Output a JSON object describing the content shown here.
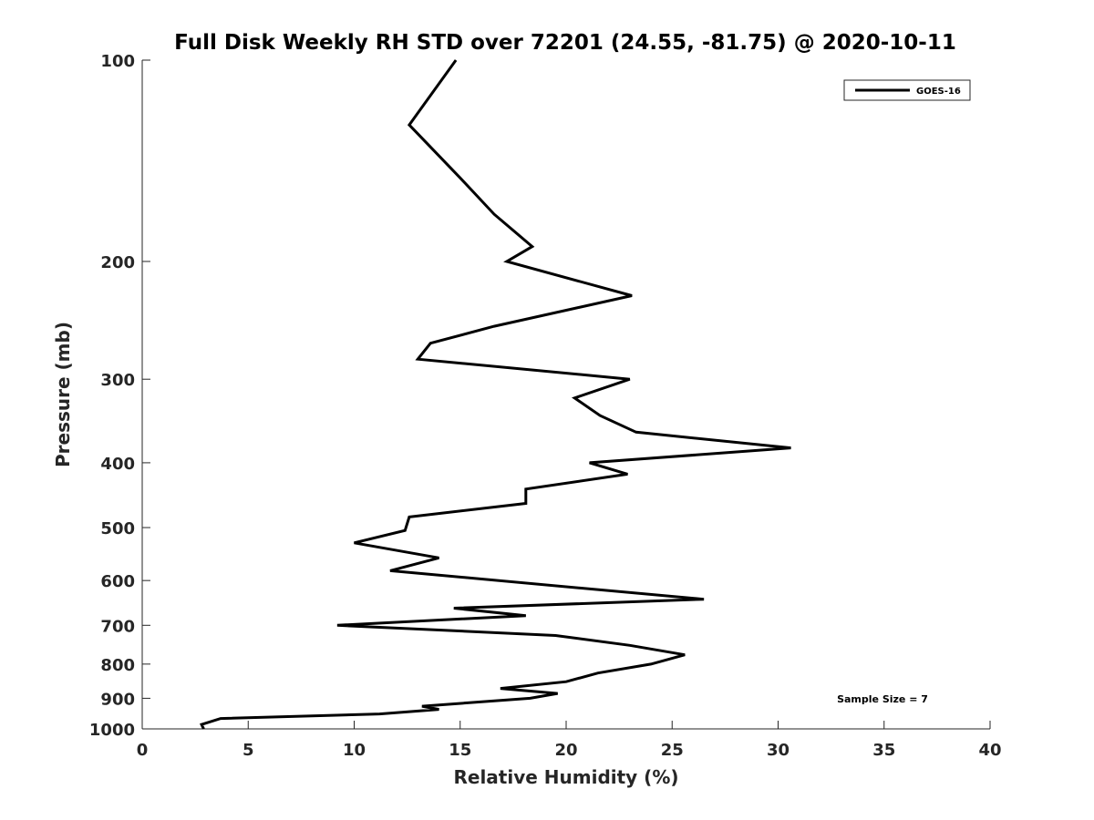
{
  "chart_data": {
    "type": "line",
    "title": "Full Disk Weekly RH STD over 72201 (24.55, -81.75) @ 2020-10-11",
    "xlabel": "Relative Humidity (%)",
    "ylabel": "Pressure (mb)",
    "xlim": [
      0,
      40
    ],
    "ylim": [
      100,
      1000
    ],
    "y_scale": "log",
    "y_reversed": true,
    "x_ticks": [
      "0",
      "5",
      "10",
      "15",
      "20",
      "25",
      "30",
      "35",
      "40"
    ],
    "x_tick_values": [
      0,
      5,
      10,
      15,
      20,
      25,
      30,
      35,
      40
    ],
    "y_ticks": [
      "100",
      "200",
      "300",
      "400",
      "500",
      "600",
      "700",
      "800",
      "900",
      "1000"
    ],
    "y_tick_values": [
      100,
      200,
      300,
      400,
      500,
      600,
      700,
      800,
      900,
      1000
    ],
    "legend_position": "top-right",
    "annotation": "Sample Size = 7",
    "series": [
      {
        "name": "GOES-16",
        "color": "#000000",
        "points": [
          [
            14.8,
            100
          ],
          [
            12.6,
            125
          ],
          [
            15.0,
            150
          ],
          [
            16.6,
            170
          ],
          [
            18.4,
            190
          ],
          [
            17.2,
            200
          ],
          [
            23.1,
            225
          ],
          [
            16.6,
            250
          ],
          [
            13.6,
            265
          ],
          [
            13.0,
            280
          ],
          [
            23.0,
            300
          ],
          [
            20.4,
            320
          ],
          [
            21.6,
            340
          ],
          [
            23.3,
            360
          ],
          [
            30.6,
            380
          ],
          [
            21.1,
            400
          ],
          [
            22.9,
            416
          ],
          [
            18.1,
            438
          ],
          [
            18.1,
            460
          ],
          [
            12.6,
            482
          ],
          [
            12.4,
            505
          ],
          [
            10.0,
            527
          ],
          [
            14.0,
            555
          ],
          [
            11.7,
            580
          ],
          [
            26.5,
            640
          ],
          [
            14.7,
            660
          ],
          [
            18.1,
            677
          ],
          [
            9.2,
            700
          ],
          [
            19.5,
            725
          ],
          [
            23.0,
            750
          ],
          [
            25.6,
            775
          ],
          [
            24.0,
            800
          ],
          [
            21.5,
            825
          ],
          [
            20.0,
            850
          ],
          [
            16.9,
            870
          ],
          [
            19.6,
            885
          ],
          [
            18.3,
            900
          ],
          [
            13.2,
            925
          ],
          [
            14.0,
            935
          ],
          [
            11.2,
            950
          ],
          [
            3.7,
            965
          ],
          [
            2.8,
            985
          ],
          [
            2.9,
            1000
          ]
        ]
      }
    ]
  }
}
